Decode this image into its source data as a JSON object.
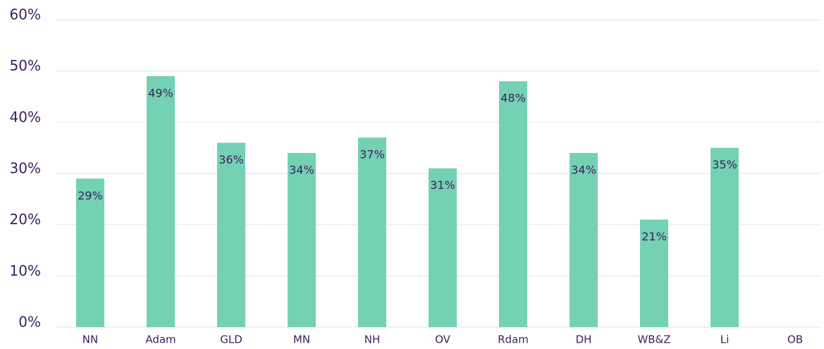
{
  "chart_data": {
    "type": "bar",
    "categories": [
      "NN",
      "Adam",
      "GLD",
      "MN",
      "NH",
      "OV",
      "Rdam",
      "DH",
      "WB&Z",
      "Li",
      "OB"
    ],
    "values": [
      29,
      49,
      36,
      34,
      37,
      31,
      48,
      34,
      21,
      35,
      null
    ],
    "value_labels": [
      "29%",
      "49%",
      "36%",
      "34%",
      "37%",
      "31%",
      "48%",
      "34%",
      "21%",
      "35%",
      null
    ],
    "color": "#74d1b4",
    "ylim": [
      0,
      60
    ],
    "yticks": [
      {
        "value": 0,
        "label": "0%"
      },
      {
        "value": 10,
        "label": "10%"
      },
      {
        "value": 20,
        "label": "20%"
      },
      {
        "value": 30,
        "label": "30%"
      },
      {
        "value": 40,
        "label": "40%"
      },
      {
        "value": 50,
        "label": "50%"
      },
      {
        "value": 60,
        "label": "60%"
      }
    ],
    "grid": true
  }
}
